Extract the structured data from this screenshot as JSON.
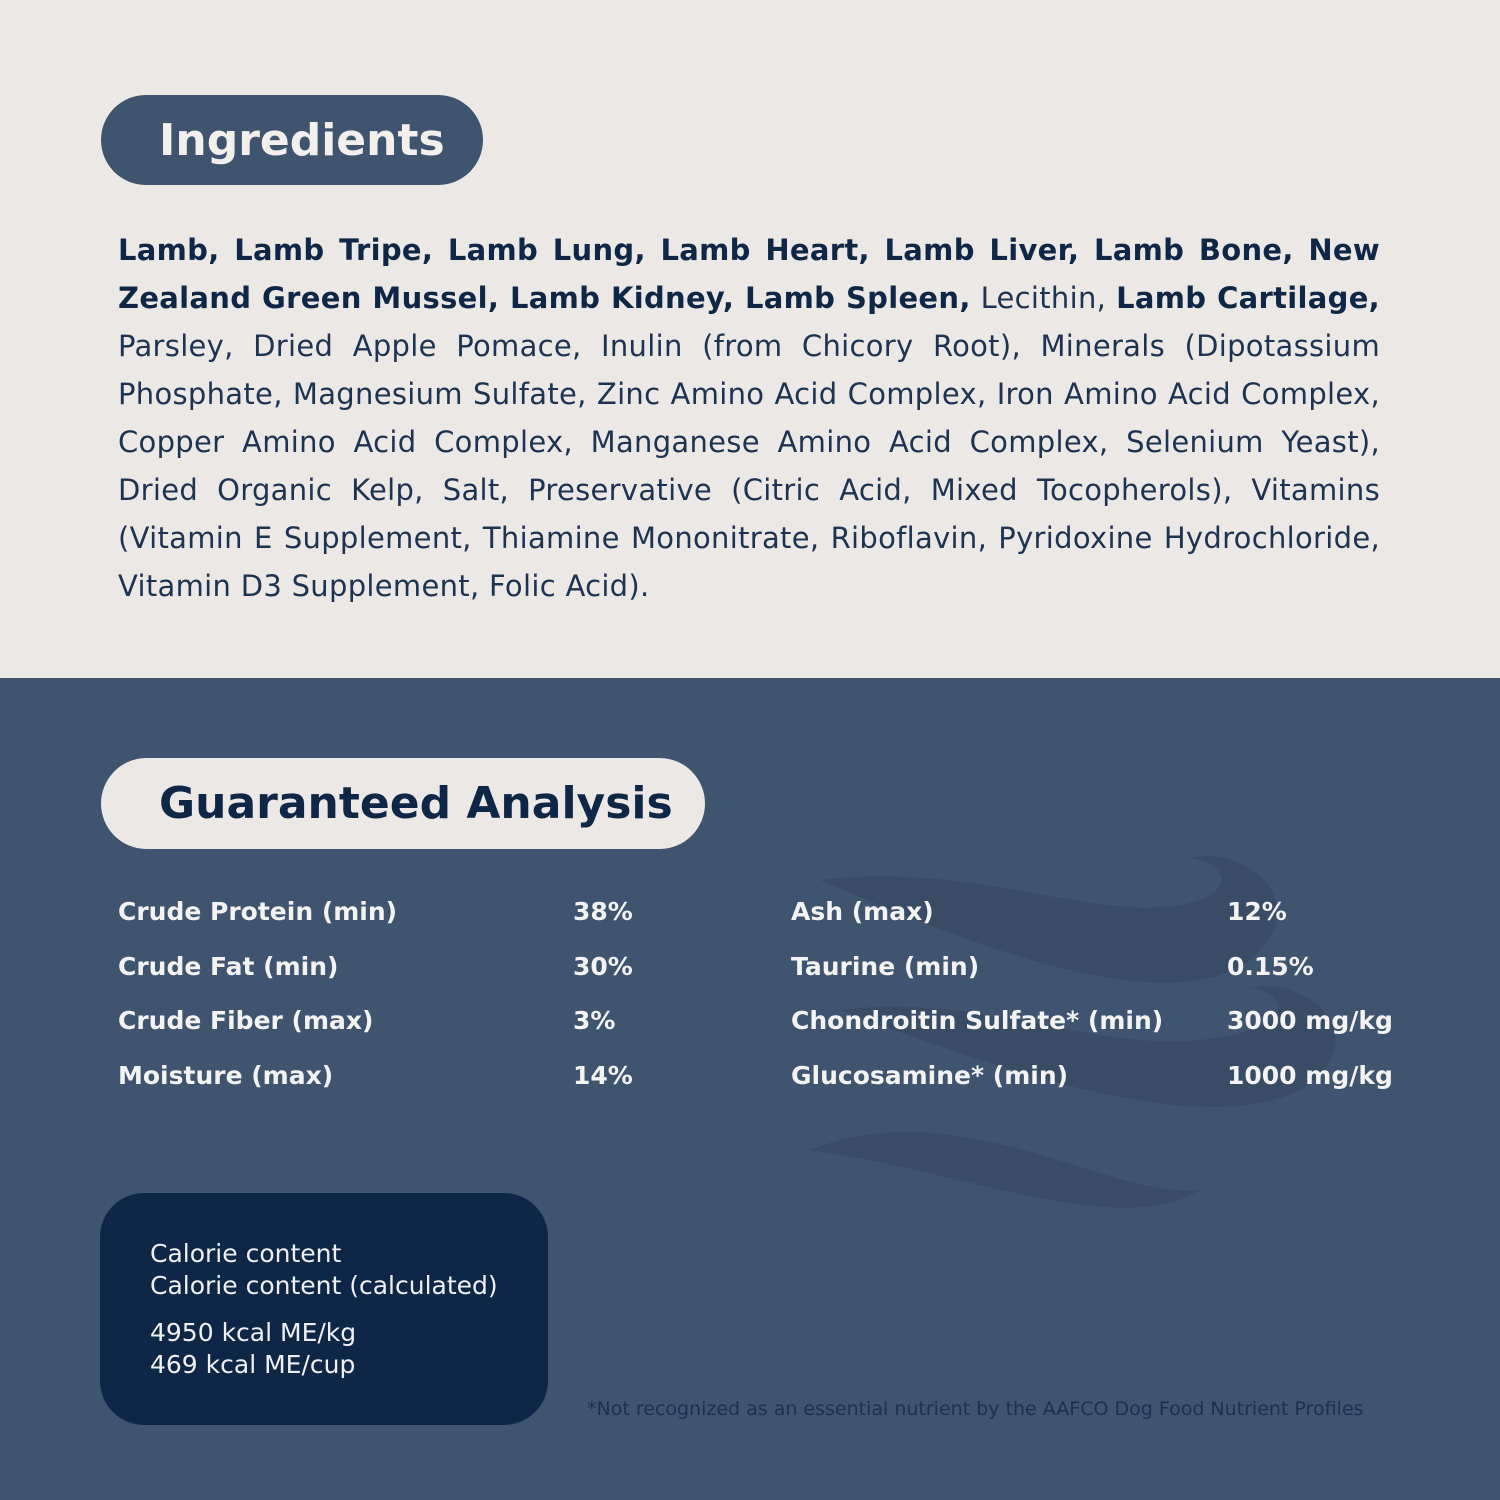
{
  "ingredients": {
    "title": "Ingredients",
    "segments": [
      {
        "text": "Lamb, Lamb Tripe, Lamb Lung, Lamb Heart, Lamb Liver, Lamb Bone, New Zealand Green Mussel, Lamb Kidney, Lamb Spleen,",
        "bold": true
      },
      {
        "text": " Lecithin, ",
        "bold": false
      },
      {
        "text": "Lamb Cartilage,",
        "bold": true
      },
      {
        "text": " Parsley, Dried Apple Pomace, Inulin (from Chicory Root), Minerals (Dipotassium Phosphate, Magnesium Sulfate, Zinc Amino Acid Complex, Iron Amino Acid Complex, Copper Amino Acid Complex, Manganese Amino Acid Complex, Selenium Yeast), Dried Organic Kelp, Salt, Preservative (Citric Acid, Mixed Tocopherols), Vitamins (Vitamin E Supplement, Thiamine Mononitrate, Riboflavin, Pyridoxine Hydrochloride, Vitamin D3 Supplement, Folic Acid).",
        "bold": false
      }
    ]
  },
  "analysis": {
    "title": "Guaranteed Analysis",
    "left": [
      {
        "label": "Crude Protein (min)",
        "value": "38%"
      },
      {
        "label": "Crude Fat (min)",
        "value": "30%"
      },
      {
        "label": "Crude Fiber (max)",
        "value": "3%"
      },
      {
        "label": "Moisture (max)",
        "value": "14%"
      }
    ],
    "right": [
      {
        "label": "Ash (max)",
        "value": "12%"
      },
      {
        "label": "Taurine (min)",
        "value": "0.15%"
      },
      {
        "label": "Chondroitin Sulfate* (min)",
        "value": "3000 mg/kg"
      },
      {
        "label": "Glucosamine* (min)",
        "value": "1000 mg/kg"
      }
    ]
  },
  "calorie": {
    "line1": "Calorie content",
    "line2": "Calorie content (calculated)",
    "value1": "4950 kcal ME/kg",
    "value2": "469 kcal ME/cup"
  },
  "footnote": "*Not recognized as an essential nutrient by the AAFCO Dog Food Nutrient Profiles",
  "colors": {
    "cream": "#ece8e5",
    "slate_blue": "#3e546f",
    "navy": "#0f2747"
  }
}
